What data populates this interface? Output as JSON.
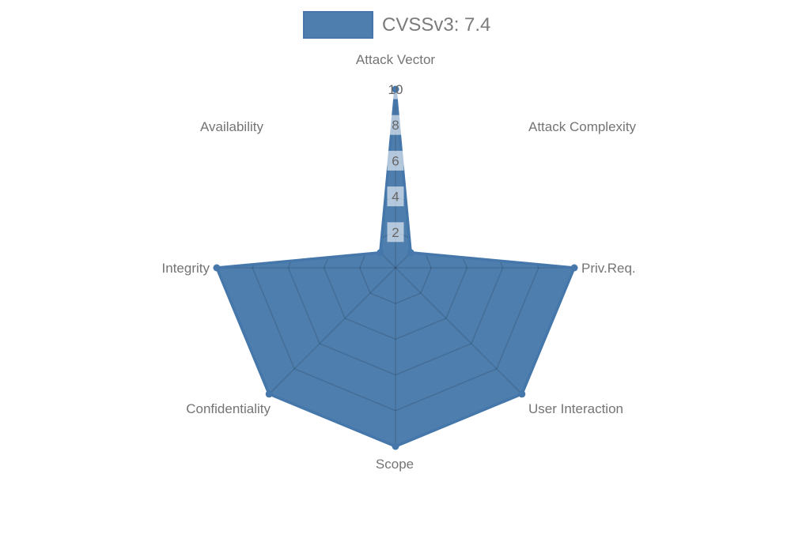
{
  "legend": {
    "label": "CVSSv3: 7.4"
  },
  "chart_data": {
    "type": "radar",
    "title": "",
    "categories": [
      "Attack Vector",
      "Attack Complexity",
      "Priv.Req.",
      "User Interaction",
      "Scope",
      "Confidentiality",
      "Integrity",
      "Availability"
    ],
    "series": [
      {
        "name": "CVSSv3: 7.4",
        "values": [
          10,
          1.2,
          10,
          10,
          10,
          10,
          10,
          1.2
        ]
      }
    ],
    "ticks": [
      2,
      4,
      6,
      8,
      10
    ],
    "rlim": [
      0,
      10
    ],
    "grid": true,
    "legend_position": "top",
    "colors": {
      "series_stroke": "#4577aa",
      "series_fill": "rgba(69,119,170,0.95)",
      "grid_line": "rgba(0,0,0,0.13)",
      "tick_text": "#666666",
      "tick_backdrop": "rgba(255,255,255,0.58)",
      "axis_label": "#747474",
      "legend_text": "#7b7b7b"
    }
  }
}
